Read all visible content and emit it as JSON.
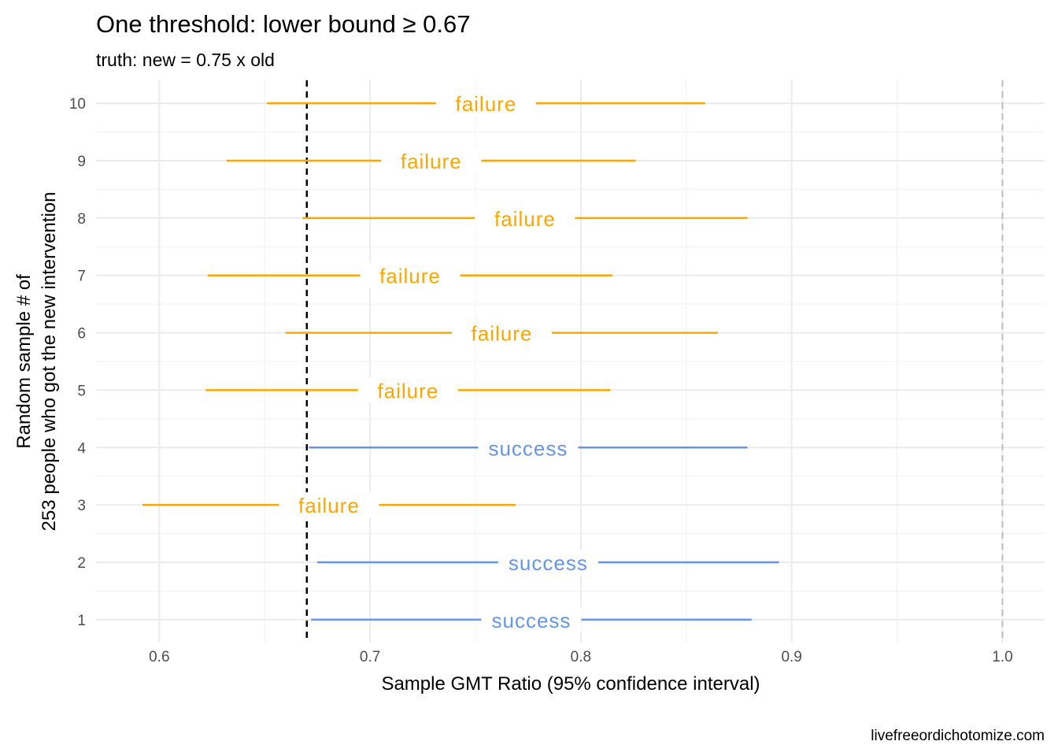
{
  "title": "One threshold: lower bound ≥ 0.67",
  "subtitle": "truth: new = 0.75 x old",
  "caption": "livefreeordichotomize.com",
  "chart_data": {
    "type": "forest",
    "title": "One threshold: lower bound ≥ 0.67",
    "subtitle": "truth: new = 0.75 x old",
    "xlabel": "Sample GMT Ratio (95% confidence interval)",
    "ylabel_lines": [
      "Random sample # of",
      "253 people who got the new intervention"
    ],
    "xlim": [
      0.57,
      1.02
    ],
    "ylim": [
      0.6,
      10.4
    ],
    "x_ticks": [
      "0.6",
      "0.7",
      "0.8",
      "0.9",
      "1.0"
    ],
    "x_tick_values": [
      0.6,
      0.7,
      0.8,
      0.9,
      1.0
    ],
    "y_ticks": [
      "1",
      "2",
      "3",
      "4",
      "5",
      "6",
      "7",
      "8",
      "9",
      "10"
    ],
    "threshold": 0.67,
    "reference": 1.0,
    "grid": true,
    "colors": {
      "success": "#6495ED",
      "failure": "#FFA500",
      "threshold": "#000000",
      "reference": "#bdbdbd"
    },
    "rows": [
      {
        "sample": 1,
        "estimate": 0.77,
        "lower": 0.672,
        "upper": 0.881,
        "label": "success"
      },
      {
        "sample": 2,
        "estimate": 0.777,
        "lower": 0.675,
        "upper": 0.894,
        "label": "success"
      },
      {
        "sample": 3,
        "estimate": 0.675,
        "lower": 0.592,
        "upper": 0.769,
        "label": "failure"
      },
      {
        "sample": 4,
        "estimate": 0.768,
        "lower": 0.671,
        "upper": 0.879,
        "label": "success"
      },
      {
        "sample": 5,
        "estimate": 0.712,
        "lower": 0.622,
        "upper": 0.814,
        "label": "failure"
      },
      {
        "sample": 6,
        "estimate": 0.756,
        "lower": 0.66,
        "upper": 0.865,
        "label": "failure"
      },
      {
        "sample": 7,
        "estimate": 0.712,
        "lower": 0.623,
        "upper": 0.815,
        "label": "failure"
      },
      {
        "sample": 8,
        "estimate": 0.766,
        "lower": 0.668,
        "upper": 0.879,
        "label": "failure"
      },
      {
        "sample": 9,
        "estimate": 0.722,
        "lower": 0.632,
        "upper": 0.826,
        "label": "failure"
      },
      {
        "sample": 10,
        "estimate": 0.748,
        "lower": 0.651,
        "upper": 0.859,
        "label": "failure"
      }
    ]
  }
}
